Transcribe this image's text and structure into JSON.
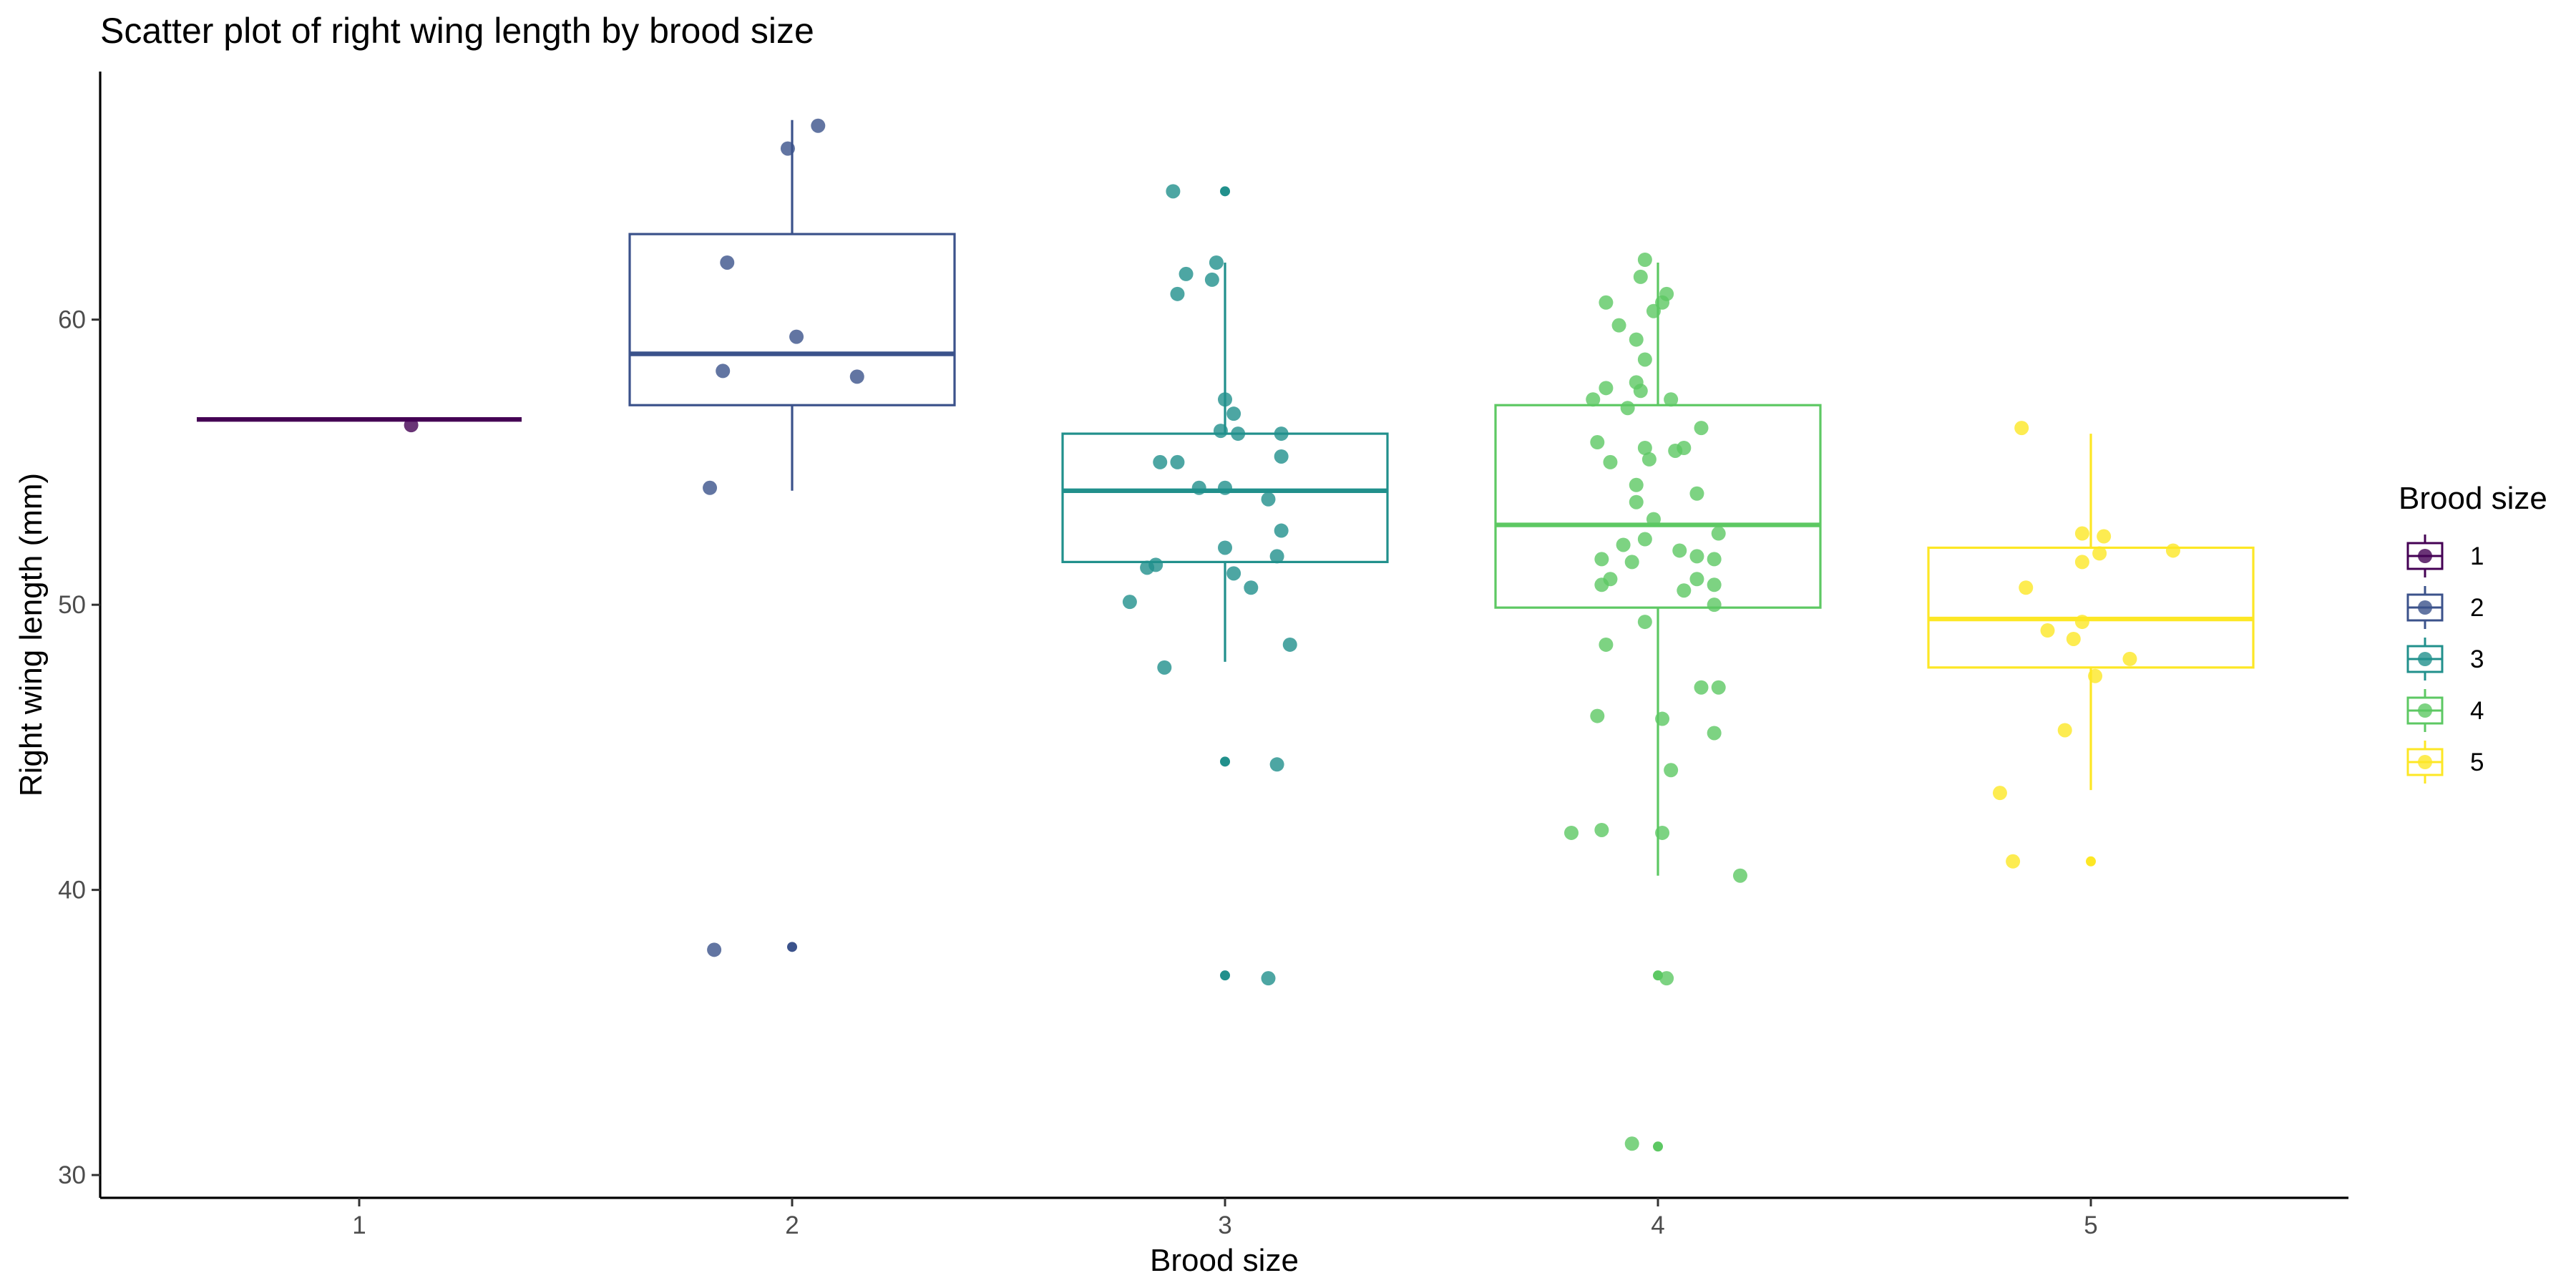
{
  "chart_data": {
    "type": "scatter",
    "overlay": "boxplot",
    "title": "Scatter plot of right wing length by brood size",
    "xlabel": "Brood size",
    "ylabel": "Right wing length (mm)",
    "x_tick_labels": [
      "1",
      "2",
      "3",
      "4",
      "5"
    ],
    "y_ticks": [
      30,
      40,
      50,
      60
    ],
    "ylim": [
      29.2,
      68.7
    ],
    "grid": false,
    "legend": {
      "title": "Brood size",
      "position": "right",
      "entries": [
        "1",
        "2",
        "3",
        "4",
        "5"
      ]
    },
    "colors": {
      "1": "#440154",
      "2": "#3b528b",
      "3": "#21908c",
      "4": "#5dc863",
      "5": "#fde725"
    },
    "boxes": [
      {
        "group": "1",
        "q1": 56.5,
        "median": 56.5,
        "q3": 56.5,
        "whisker_low": 56.5,
        "whisker_high": 56.5
      },
      {
        "group": "2",
        "q1": 57.0,
        "median": 58.8,
        "q3": 63.0,
        "whisker_low": 54.0,
        "whisker_high": 67.0
      },
      {
        "group": "3",
        "q1": 51.5,
        "median": 54.0,
        "q3": 56.0,
        "whisker_low": 48.0,
        "whisker_high": 62.0
      },
      {
        "group": "4",
        "q1": 49.9,
        "median": 52.8,
        "q3": 57.0,
        "whisker_low": 40.5,
        "whisker_high": 62.0
      },
      {
        "group": "5",
        "q1": 47.8,
        "median": 49.5,
        "q3": 52.0,
        "whisker_low": 43.5,
        "whisker_high": 56.0
      }
    ],
    "outliers": [
      {
        "group": "2",
        "y": 38.0
      },
      {
        "group": "3",
        "y": 64.5
      },
      {
        "group": "3",
        "y": 44.5
      },
      {
        "group": "3",
        "y": 37.0
      },
      {
        "group": "4",
        "y": 37.0
      },
      {
        "group": "4",
        "y": 31.0
      },
      {
        "group": "5",
        "y": 41.0
      }
    ],
    "series": [
      {
        "name": "1",
        "points": [
          [
            1.12,
            56.3
          ]
        ]
      },
      {
        "name": "2",
        "points": [
          [
            2.06,
            66.8
          ],
          [
            1.99,
            66.0
          ],
          [
            1.85,
            62.0
          ],
          [
            2.01,
            59.4
          ],
          [
            1.84,
            58.2
          ],
          [
            2.15,
            58.0
          ],
          [
            1.81,
            54.1
          ],
          [
            1.82,
            37.9
          ]
        ]
      },
      {
        "name": "3",
        "points": [
          [
            2.88,
            64.5
          ],
          [
            2.91,
            61.6
          ],
          [
            2.89,
            60.9
          ],
          [
            2.97,
            61.4
          ],
          [
            2.98,
            62.0
          ],
          [
            3.0,
            57.2
          ],
          [
            3.02,
            56.7
          ],
          [
            2.99,
            56.1
          ],
          [
            3.03,
            56.0
          ],
          [
            3.13,
            56.0
          ],
          [
            3.13,
            55.2
          ],
          [
            2.85,
            55.0
          ],
          [
            2.89,
            55.0
          ],
          [
            2.94,
            54.1
          ],
          [
            3.0,
            54.1
          ],
          [
            3.1,
            53.7
          ],
          [
            3.13,
            52.6
          ],
          [
            3.0,
            52.0
          ],
          [
            2.84,
            51.4
          ],
          [
            3.12,
            51.7
          ],
          [
            2.82,
            51.3
          ],
          [
            3.02,
            51.1
          ],
          [
            3.06,
            50.6
          ],
          [
            2.78,
            50.1
          ],
          [
            3.15,
            48.6
          ],
          [
            2.86,
            47.8
          ],
          [
            3.12,
            44.4
          ],
          [
            3.1,
            36.9
          ]
        ]
      },
      {
        "name": "4",
        "points": [
          [
            3.97,
            62.1
          ],
          [
            3.96,
            61.5
          ],
          [
            4.01,
            60.6
          ],
          [
            3.99,
            60.3
          ],
          [
            4.02,
            60.9
          ],
          [
            3.88,
            60.6
          ],
          [
            3.91,
            59.8
          ],
          [
            3.95,
            59.3
          ],
          [
            3.97,
            58.6
          ],
          [
            3.95,
            57.8
          ],
          [
            3.85,
            57.2
          ],
          [
            3.88,
            57.6
          ],
          [
            3.96,
            57.5
          ],
          [
            3.93,
            56.9
          ],
          [
            4.03,
            57.2
          ],
          [
            3.86,
            55.7
          ],
          [
            4.1,
            56.2
          ],
          [
            3.89,
            55.0
          ],
          [
            3.97,
            55.5
          ],
          [
            3.98,
            55.1
          ],
          [
            4.04,
            55.4
          ],
          [
            4.06,
            55.5
          ],
          [
            3.95,
            54.2
          ],
          [
            4.09,
            53.9
          ],
          [
            3.95,
            53.6
          ],
          [
            3.99,
            53.0
          ],
          [
            4.14,
            52.5
          ],
          [
            3.92,
            52.1
          ],
          [
            3.97,
            52.3
          ],
          [
            4.05,
            51.9
          ],
          [
            4.09,
            51.7
          ],
          [
            3.87,
            51.6
          ],
          [
            3.94,
            51.5
          ],
          [
            4.13,
            51.6
          ],
          [
            3.89,
            50.9
          ],
          [
            4.09,
            50.9
          ],
          [
            3.87,
            50.7
          ],
          [
            4.13,
            50.7
          ],
          [
            4.06,
            50.5
          ],
          [
            4.13,
            50.0
          ],
          [
            3.97,
            49.4
          ],
          [
            3.88,
            48.6
          ],
          [
            4.1,
            47.1
          ],
          [
            4.14,
            47.1
          ],
          [
            3.86,
            46.1
          ],
          [
            4.01,
            46.0
          ],
          [
            4.13,
            45.5
          ],
          [
            4.03,
            44.2
          ],
          [
            3.8,
            42.0
          ],
          [
            3.87,
            42.1
          ],
          [
            4.01,
            42.0
          ],
          [
            4.19,
            40.5
          ],
          [
            4.02,
            36.9
          ],
          [
            3.94,
            31.1
          ]
        ]
      },
      {
        "name": "5",
        "points": [
          [
            4.84,
            56.2
          ],
          [
            4.98,
            52.5
          ],
          [
            5.03,
            52.4
          ],
          [
            5.02,
            51.8
          ],
          [
            4.98,
            51.5
          ],
          [
            5.19,
            51.9
          ],
          [
            4.85,
            50.6
          ],
          [
            4.98,
            49.4
          ],
          [
            4.9,
            49.1
          ],
          [
            4.96,
            48.8
          ],
          [
            5.09,
            48.1
          ],
          [
            5.01,
            47.5
          ],
          [
            4.94,
            45.6
          ],
          [
            4.79,
            43.4
          ],
          [
            4.82,
            41.0
          ]
        ]
      }
    ]
  }
}
